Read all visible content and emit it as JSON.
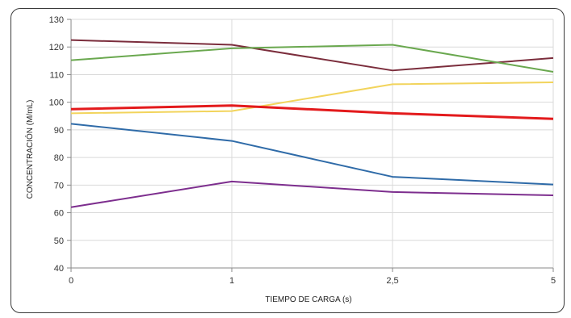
{
  "chart_data": {
    "type": "line",
    "title": "",
    "xlabel": "TIEMPO DE CARGA (s)",
    "ylabel": "CONCENTRACIÓN (M/mL)",
    "categories": [
      "0",
      "1",
      "2,5",
      "5"
    ],
    "ylim": [
      40,
      130
    ],
    "yticks": [
      40,
      50,
      60,
      70,
      80,
      90,
      100,
      110,
      120,
      130
    ],
    "grid": true,
    "legend": "none",
    "series": [
      {
        "color": "#7b2d3c",
        "values": [
          122.5,
          120.8,
          111.5,
          116
        ]
      },
      {
        "color": "#6aa84f",
        "values": [
          115.2,
          119.5,
          120.8,
          111
        ]
      },
      {
        "color": "#f2d45c",
        "values": [
          96,
          96.8,
          106.5,
          107.2
        ]
      },
      {
        "color": "#e31a1c",
        "values": [
          97.5,
          98.8,
          96,
          94
        ]
      },
      {
        "color": "#2f6ba8",
        "values": [
          92.2,
          86,
          73,
          70.2
        ]
      },
      {
        "color": "#7d2e8e",
        "values": [
          62,
          71.3,
          67.5,
          66.3
        ]
      }
    ]
  }
}
